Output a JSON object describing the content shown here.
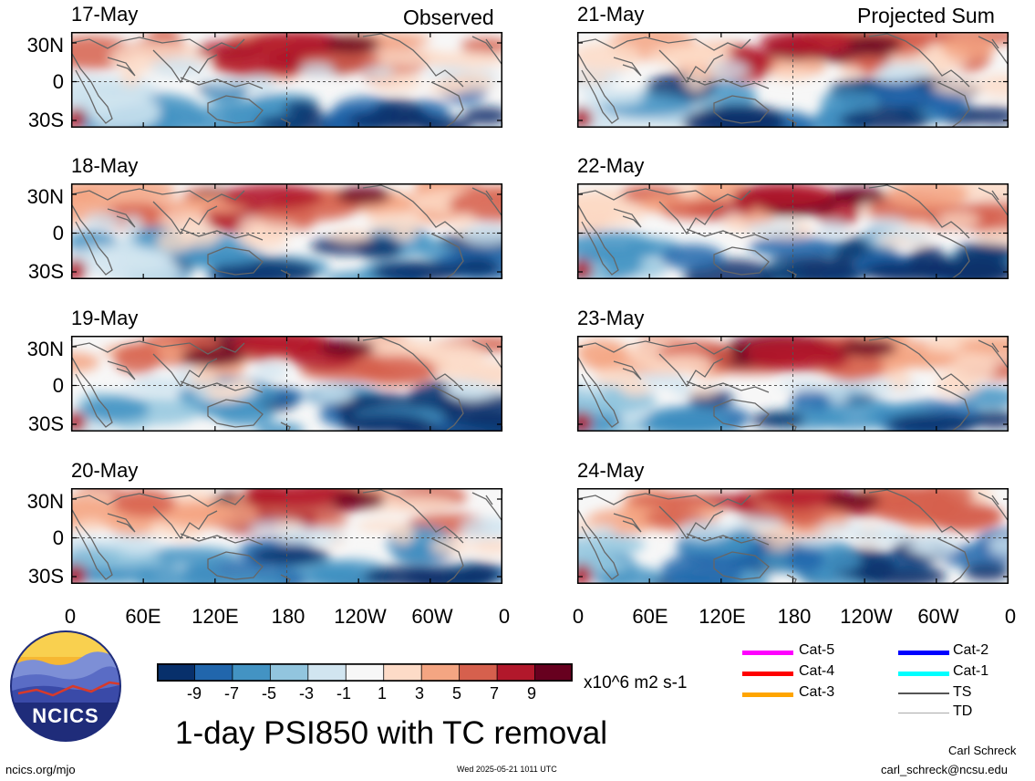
{
  "header": {
    "left_label": "Observed",
    "right_label": "Projected Sum"
  },
  "panels": [
    {
      "date": "17-May",
      "column": "left"
    },
    {
      "date": "18-May",
      "column": "left"
    },
    {
      "date": "19-May",
      "column": "left"
    },
    {
      "date": "20-May",
      "column": "left"
    },
    {
      "date": "21-May",
      "column": "right"
    },
    {
      "date": "22-May",
      "column": "right"
    },
    {
      "date": "23-May",
      "column": "right"
    },
    {
      "date": "24-May",
      "column": "right"
    }
  ],
  "lat_ticks": [
    "30N",
    "0",
    "30S"
  ],
  "lon_ticks": [
    "0",
    "60E",
    "120E",
    "180",
    "120W",
    "60W",
    "0"
  ],
  "colorbar": {
    "labels": [
      "-9",
      "-7",
      "-5",
      "-3",
      "-1",
      "1",
      "3",
      "5",
      "7",
      "9"
    ],
    "colors": [
      "#08306b",
      "#2166ac",
      "#4393c3",
      "#92c5de",
      "#d1e5f0",
      "#f7f7f7",
      "#fddbc7",
      "#f4a582",
      "#d6604d",
      "#b2182b",
      "#67001f"
    ],
    "units": "x10^6 m2 s-1"
  },
  "title": "1-day PSI850 with TC removal",
  "legend": [
    {
      "label": "Cat-5",
      "color": "#ff00ff"
    },
    {
      "label": "Cat-4",
      "color": "#ff0000"
    },
    {
      "label": "Cat-3",
      "color": "#ffa500"
    },
    {
      "label": "Cat-2",
      "color": "#0000ff"
    },
    {
      "label": "Cat-1",
      "color": "#00ffff"
    },
    {
      "label": "TS",
      "color": "#555555"
    },
    {
      "label": "TD",
      "color": "#aaaaaa"
    }
  ],
  "logo": {
    "text": "NCICS"
  },
  "footer": {
    "website": "ncics.org/mjo",
    "timestamp": "Wed 2025-05-21 1011 UTC",
    "author": "Carl Schreck",
    "email": "carl_schreck@ncsu.edu"
  }
}
